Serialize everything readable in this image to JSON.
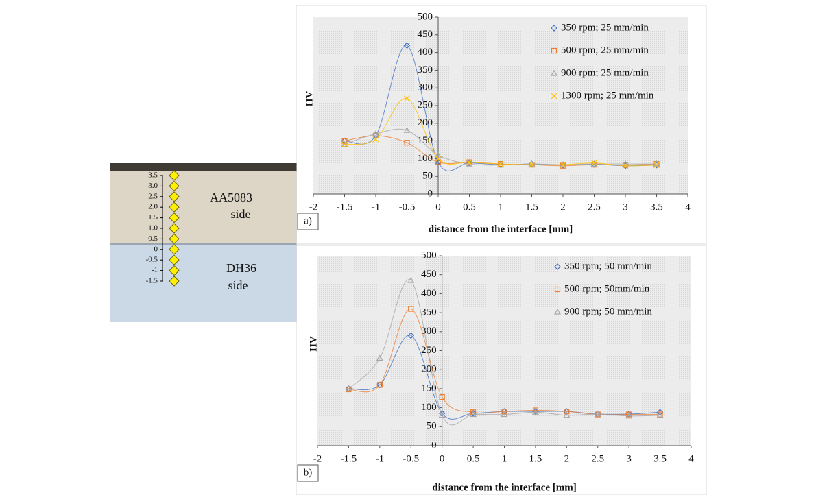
{
  "photo": {
    "top_label": [
      "AA5083",
      "side"
    ],
    "bottom_label": [
      "DH36",
      "side"
    ],
    "scale_labels": [
      "3.5",
      "3.0",
      "2.5",
      "2.0",
      "1.5",
      "1.0",
      "0.5",
      "0",
      "-0.5",
      "-1",
      "-1.5"
    ]
  },
  "chart_data": [
    {
      "type": "line",
      "panel_label": "a)",
      "y_label": "HV",
      "x_label": "distance from the interface [mm]",
      "x": [
        -1.5,
        -1,
        -0.5,
        0,
        0.5,
        1,
        1.5,
        2,
        2.5,
        3,
        3.5
      ],
      "xlim": [
        -2,
        4
      ],
      "xticks": [
        -2,
        -1.5,
        -1,
        -0.5,
        0,
        0.5,
        1,
        1.5,
        2,
        2.5,
        3,
        3.5,
        4
      ],
      "ylim": [
        0,
        500
      ],
      "yticks": [
        0,
        50,
        100,
        150,
        200,
        250,
        300,
        350,
        400,
        450,
        500
      ],
      "legend": "upper right",
      "series": [
        {
          "name": "350 rpm; 25 mm/min",
          "color": "#4472c4",
          "marker": "diamond",
          "values": [
            150,
            165,
            420,
            90,
            88,
            83,
            85,
            82,
            84,
            80,
            82
          ]
        },
        {
          "name": "500 rpm; 25 mm/min",
          "color": "#ed7d31",
          "marker": "square",
          "values": [
            150,
            165,
            145,
            90,
            90,
            85,
            83,
            80,
            83,
            82,
            85
          ]
        },
        {
          "name": "900 rpm; 25 mm/min",
          "color": "#a5a5a5",
          "marker": "triangle",
          "values": [
            140,
            170,
            180,
            110,
            85,
            82,
            85,
            83,
            85,
            85,
            85
          ]
        },
        {
          "name": "1300 rpm; 25 mm/min",
          "color": "#ffc000",
          "marker": "cross",
          "values": [
            140,
            155,
            270,
            100,
            90,
            85,
            83,
            83,
            88,
            80,
            82
          ]
        }
      ]
    },
    {
      "type": "line",
      "panel_label": "b)",
      "y_label": "HV",
      "x_label": "distance from the interface [mm]",
      "x": [
        -1.5,
        -1,
        -0.5,
        0,
        0.5,
        1,
        1.5,
        2,
        2.5,
        3,
        3.5
      ],
      "xlim": [
        -2,
        4
      ],
      "xticks": [
        -2,
        -1.5,
        -1,
        -0.5,
        0,
        0.5,
        1,
        1.5,
        2,
        2.5,
        3,
        3.5,
        4
      ],
      "ylim": [
        0,
        500
      ],
      "yticks": [
        0,
        50,
        100,
        150,
        200,
        250,
        300,
        350,
        400,
        450,
        500
      ],
      "legend": "upper right",
      "series": [
        {
          "name": "350 rpm; 50 mm/min",
          "color": "#4472c4",
          "marker": "diamond",
          "values": [
            150,
            160,
            290,
            85,
            85,
            90,
            90,
            90,
            83,
            83,
            88
          ]
        },
        {
          "name": "500 rpm; 50mm/min",
          "color": "#ed7d31",
          "marker": "square",
          "values": [
            148,
            160,
            360,
            128,
            88,
            90,
            93,
            90,
            82,
            82,
            82
          ]
        },
        {
          "name": "900 rpm; 50 mm/min",
          "color": "#a5a5a5",
          "marker": "triangle",
          "values": [
            150,
            230,
            435,
            80,
            82,
            82,
            88,
            80,
            83,
            78,
            80
          ]
        }
      ]
    }
  ]
}
